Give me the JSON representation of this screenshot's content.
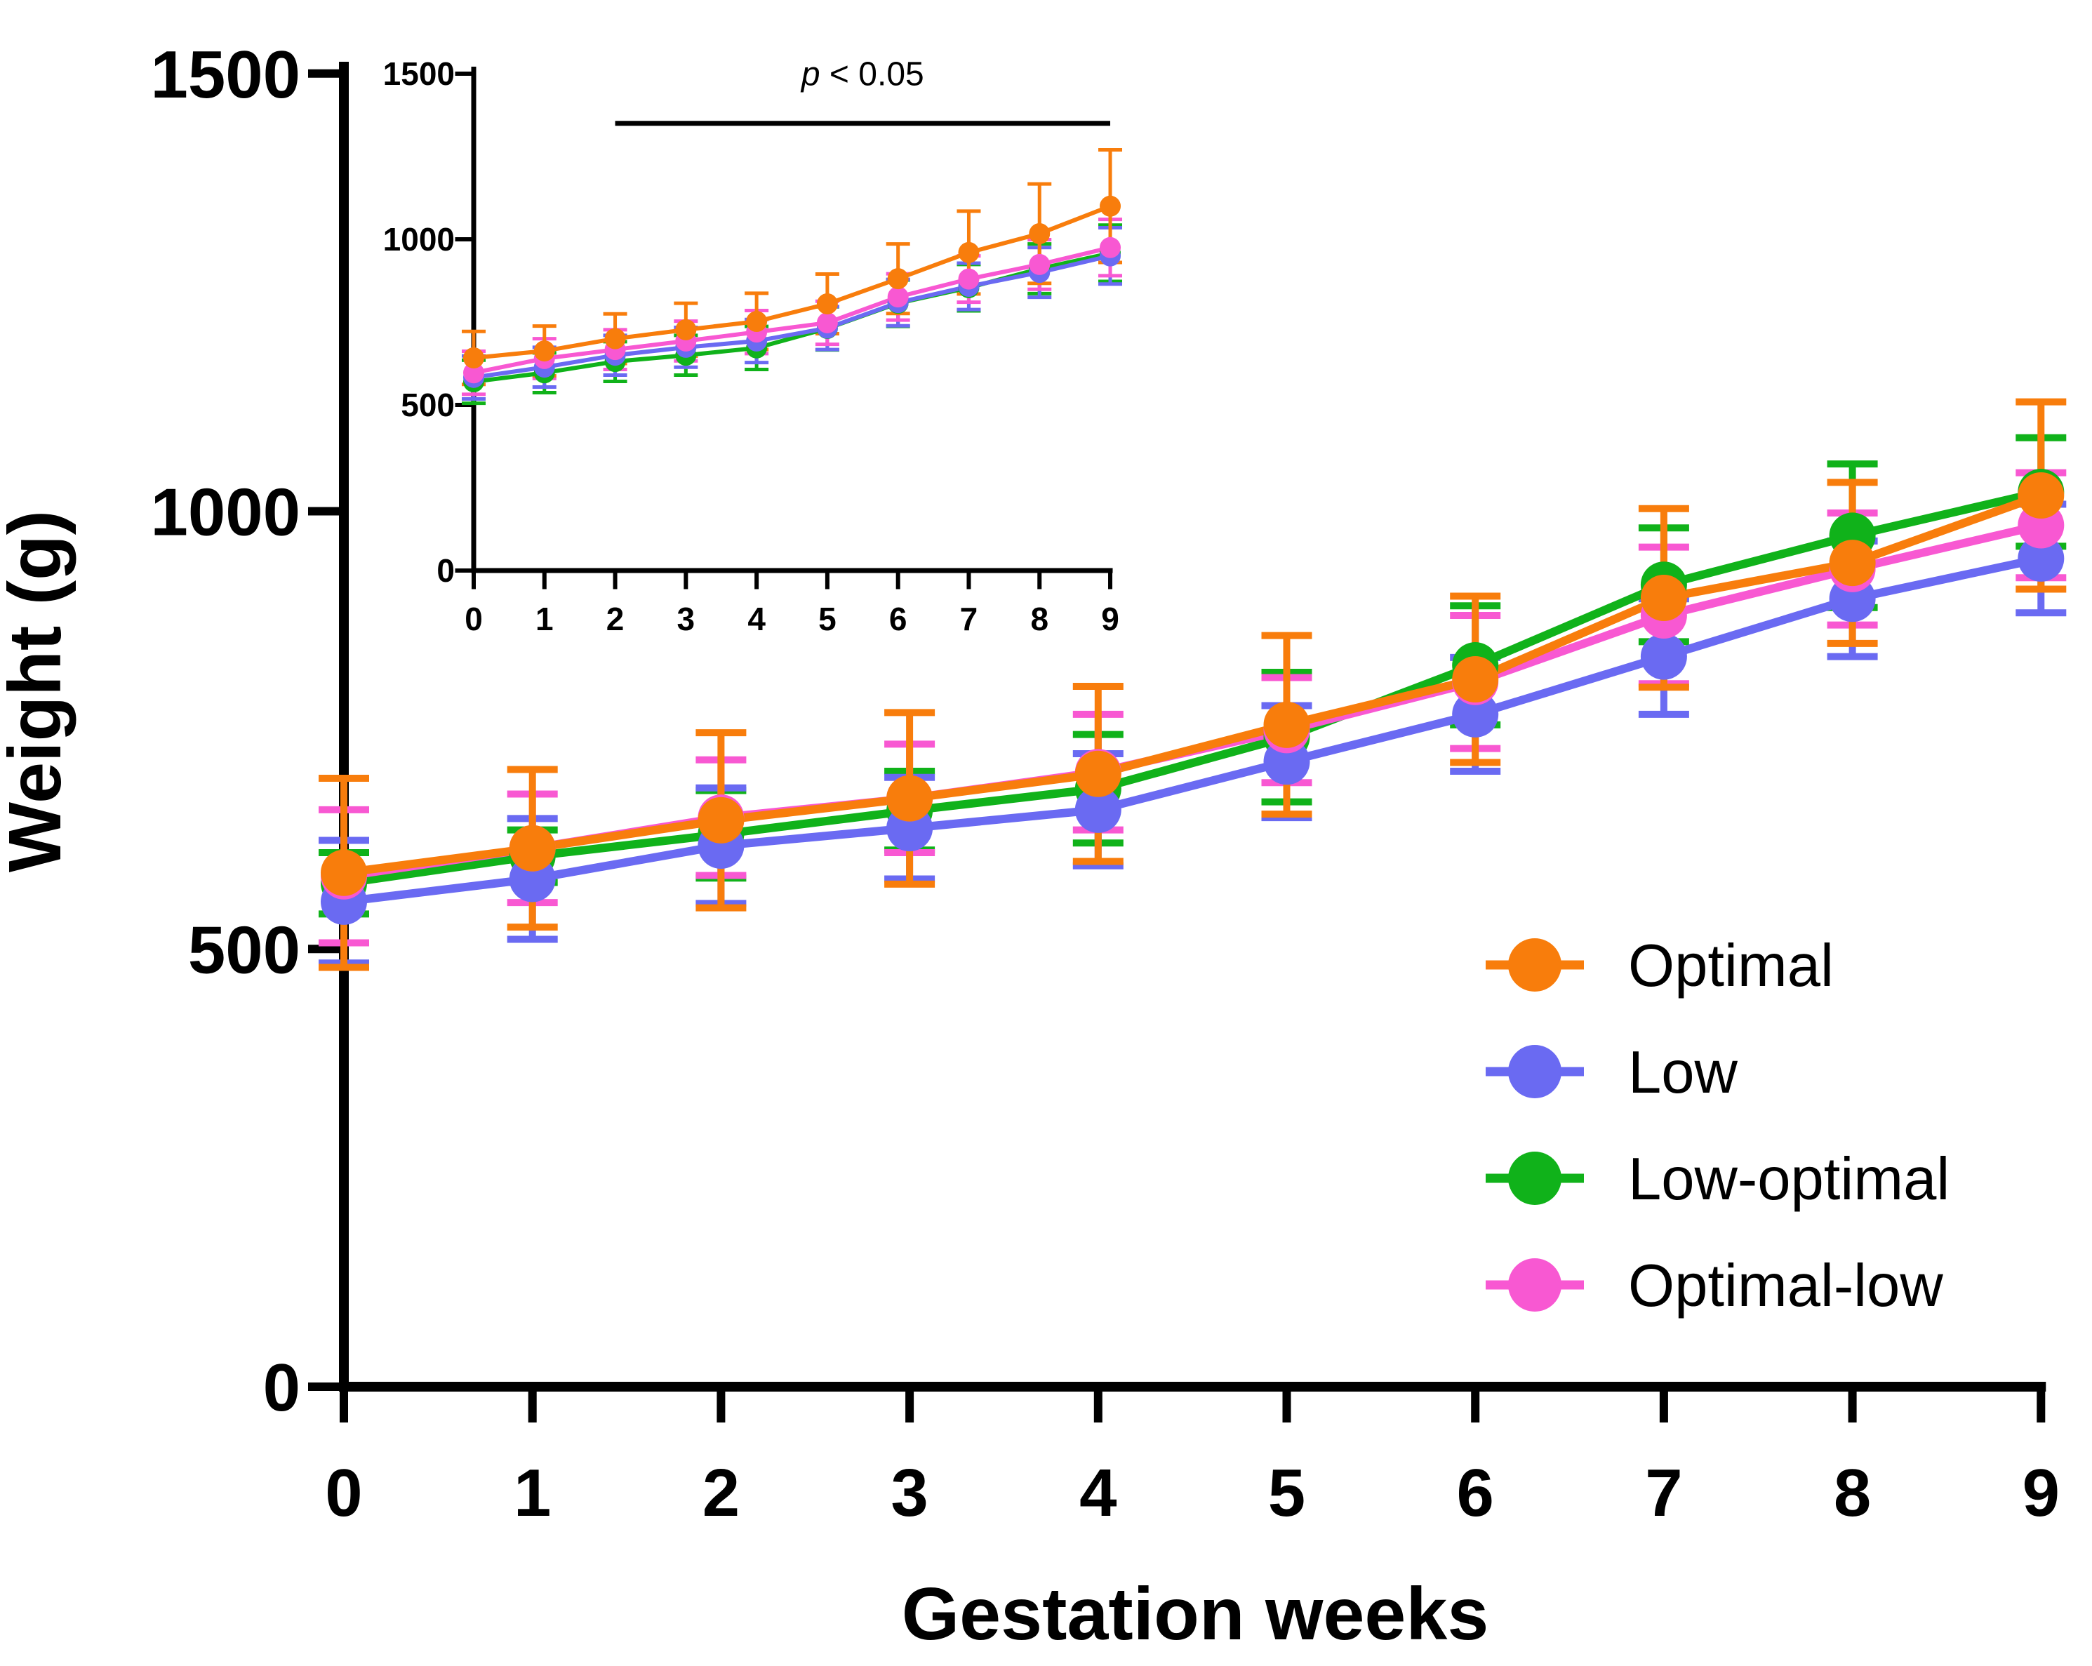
{
  "colors": {
    "optimal": "#F87D0C",
    "low": "#6A6AF2",
    "low_optimal": "#10B21A",
    "optimal_low": "#F858D2",
    "axis": "#000000",
    "background": "#FFFFFF"
  },
  "legend": {
    "position": "right-middle",
    "items": [
      {
        "label": "Optimal",
        "color_key": "optimal"
      },
      {
        "label": "Low",
        "color_key": "low"
      },
      {
        "label": "Low-optimal",
        "color_key": "low_optimal"
      },
      {
        "label": "Optimal-low",
        "color_key": "optimal_low"
      }
    ]
  },
  "chart_data": [
    {
      "id": "main",
      "type": "line",
      "title": "",
      "xlabel": "Gestation weeks",
      "ylabel": "Weight (g)",
      "x": [
        0,
        1,
        2,
        3,
        4,
        5,
        6,
        7,
        8,
        9
      ],
      "x_tick_labels": [
        "0",
        "1",
        "2",
        "3",
        "4",
        "5",
        "6",
        "7",
        "8",
        "9"
      ],
      "y_ticks": [
        0,
        500,
        1000,
        1500
      ],
      "ylim": [
        0,
        1500
      ],
      "grid": false,
      "error_bars": true,
      "series": [
        {
          "name": "Optimal",
          "color_key": "optimal",
          "values": [
            587,
            615,
            647,
            672,
            700,
            756,
            808,
            901,
            941,
            1018
          ],
          "errors": [
            108,
            90,
            100,
            98,
            100,
            102,
            95,
            102,
            92,
            107
          ]
        },
        {
          "name": "Low",
          "color_key": "low",
          "values": [
            554,
            580,
            618,
            638,
            659,
            714,
            768,
            834,
            900,
            946
          ],
          "errors": [
            70,
            69,
            66,
            58,
            64,
            64,
            65,
            66,
            66,
            62
          ]
        },
        {
          "name": "Low-optimal",
          "color_key": "low_optimal",
          "values": [
            575,
            606,
            631,
            658,
            683,
            742,
            824,
            916,
            972,
            1022
          ],
          "errors": [
            35,
            30,
            50,
            45,
            62,
            74,
            68,
            65,
            82,
            62
          ]
        },
        {
          "name": "Optimal-low",
          "color_key": "optimal_low",
          "values": [
            583,
            615,
            650,
            672,
            702,
            750,
            805,
            881,
            934,
            984
          ],
          "errors": [
            76,
            62,
            66,
            62,
            66,
            60,
            76,
            78,
            64,
            60
          ]
        }
      ]
    },
    {
      "id": "inset",
      "type": "line",
      "title": "",
      "xlabel": "",
      "ylabel": "",
      "x": [
        0,
        1,
        2,
        3,
        4,
        5,
        6,
        7,
        8,
        9
      ],
      "x_tick_labels": [
        "0",
        "1",
        "2",
        "3",
        "4",
        "5",
        "6",
        "7",
        "8",
        "9"
      ],
      "y_ticks": [
        0,
        500,
        1000,
        1500
      ],
      "ylim": [
        0,
        1500
      ],
      "grid": false,
      "error_bars": true,
      "annotation": {
        "text": "p < 0.05",
        "italic_prefix": "p",
        "x_from": 2,
        "x_to": 9,
        "line_y": 1350,
        "text_y": 1465
      },
      "series": [
        {
          "name": "Optimal",
          "color_key": "optimal",
          "values": [
            642,
            663,
            700,
            727,
            752,
            805,
            881,
            960,
            1017,
            1100
          ],
          "errors": [
            80,
            75,
            75,
            80,
            85,
            90,
            105,
            125,
            150,
            170
          ]
        },
        {
          "name": "Low",
          "color_key": "low",
          "values": [
            583,
            614,
            650,
            674,
            693,
            732,
            809,
            858,
            900,
            950
          ],
          "errors": [
            65,
            60,
            60,
            60,
            65,
            65,
            70,
            70,
            75,
            85
          ]
        },
        {
          "name": "Low-optimal",
          "color_key": "low_optimal",
          "values": [
            570,
            597,
            631,
            650,
            672,
            731,
            807,
            854,
            911,
            958
          ],
          "errors": [
            65,
            60,
            60,
            60,
            65,
            65,
            70,
            70,
            75,
            85
          ]
        },
        {
          "name": "Optimal-low",
          "color_key": "optimal_low",
          "values": [
            597,
            640,
            667,
            693,
            720,
            748,
            826,
            880,
            924,
            975
          ],
          "errors": [
            65,
            60,
            60,
            60,
            65,
            65,
            70,
            70,
            75,
            85
          ]
        }
      ]
    }
  ]
}
